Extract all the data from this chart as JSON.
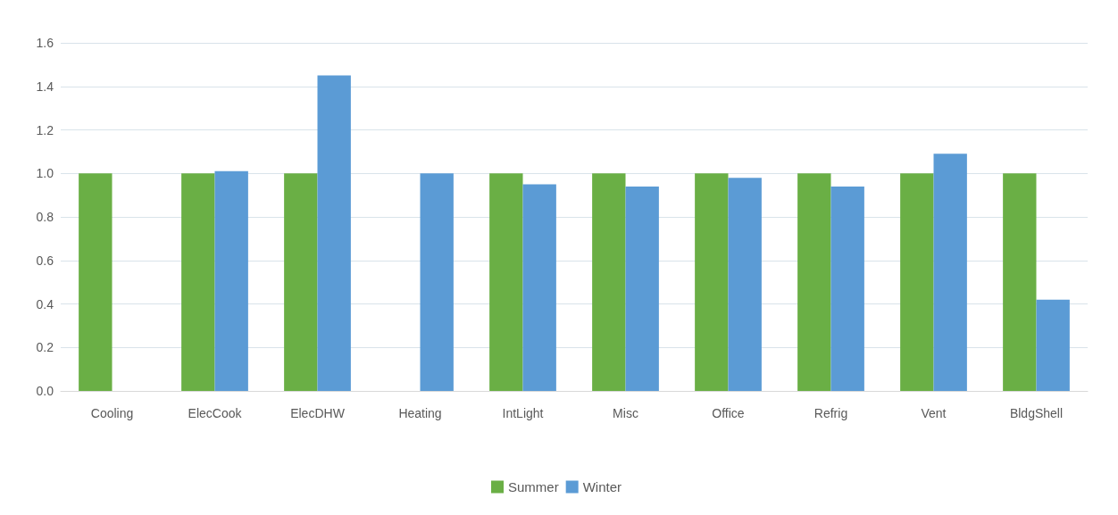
{
  "chart_data": {
    "type": "bar",
    "categories": [
      "Cooling",
      "ElecCook",
      "ElecDHW",
      "Heating",
      "IntLight",
      "Misc",
      "Office",
      "Refrig",
      "Vent",
      "BldgShell"
    ],
    "series": [
      {
        "name": "Summer",
        "color": "#6aaf45",
        "values": [
          1.0,
          1.0,
          1.0,
          null,
          1.0,
          1.0,
          1.0,
          1.0,
          1.0,
          1.0
        ]
      },
      {
        "name": "Winter",
        "color": "#5b9bd5",
        "values": [
          null,
          1.01,
          1.45,
          1.0,
          0.95,
          0.94,
          0.98,
          0.94,
          1.09,
          0.42
        ]
      }
    ],
    "ylim": [
      0,
      1.6
    ],
    "yticks": [
      {
        "value": 0,
        "label": "0.0"
      },
      {
        "value": 0.2,
        "label": "0.2"
      },
      {
        "value": 0.4,
        "label": "0.4"
      },
      {
        "value": 0.6,
        "label": "0.6"
      },
      {
        "value": 0.8,
        "label": "0.8"
      },
      {
        "value": 1,
        "label": "1.0"
      },
      {
        "value": 1.2,
        "label": "1.2"
      },
      {
        "value": 1.4,
        "label": "1.4"
      },
      {
        "value": 1.6,
        "label": "1.6"
      }
    ],
    "grid": "y",
    "legend": "bottom"
  }
}
